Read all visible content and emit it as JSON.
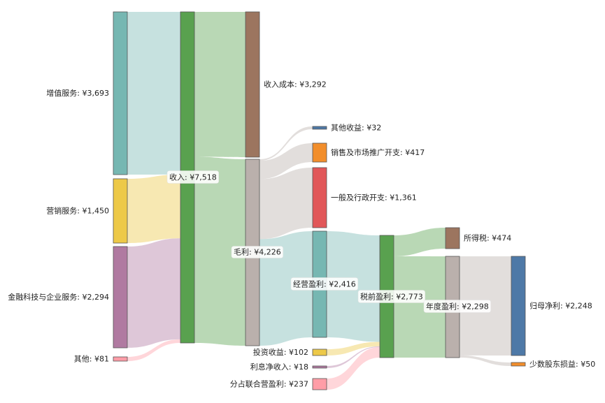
{
  "chart_data": {
    "type": "sankey",
    "currency_prefix": "¥",
    "nodes": [
      {
        "id": "n_vas",
        "label": "增值服务",
        "value": 3693,
        "color": "#76b7b2"
      },
      {
        "id": "n_mkt",
        "label": "营销服务",
        "value": 1450,
        "color": "#edc948"
      },
      {
        "id": "n_fin",
        "label": "金融科技与企业服务",
        "value": 2294,
        "color": "#b07aa1"
      },
      {
        "id": "n_oth",
        "label": "其他",
        "value": 81,
        "color": "#ff9da7"
      },
      {
        "id": "n_rev",
        "label": "收入",
        "value": 7518,
        "color": "#59a14f"
      },
      {
        "id": "n_cost",
        "label": "收入成本",
        "value": 3292,
        "color": "#9c755f"
      },
      {
        "id": "n_gross",
        "label": "毛利",
        "value": 4226,
        "color": "#bab0ac"
      },
      {
        "id": "n_oi",
        "label": "其他收益",
        "value": 32,
        "color": "#4e79a7"
      },
      {
        "id": "n_sm",
        "label": "销售及市场推广开支",
        "value": 417,
        "color": "#f28e2b"
      },
      {
        "id": "n_ga",
        "label": "一般及行政开支",
        "value": 1361,
        "color": "#e15759"
      },
      {
        "id": "n_op",
        "label": "经营盈利",
        "value": 2416,
        "color": "#76b7b2"
      },
      {
        "id": "n_inv",
        "label": "投资收益",
        "value": 102,
        "color": "#edc948"
      },
      {
        "id": "n_int",
        "label": "利息净收入",
        "value": 18,
        "color": "#b07aa1"
      },
      {
        "id": "n_assoc",
        "label": "分占联合营盈利",
        "value": 237,
        "color": "#ff9da7"
      },
      {
        "id": "n_pbt",
        "label": "税前盈利",
        "value": 2773,
        "color": "#59a14f"
      },
      {
        "id": "n_tax",
        "label": "所得税",
        "value": 474,
        "color": "#9c755f"
      },
      {
        "id": "n_np",
        "label": "年度盈利",
        "value": 2298,
        "color": "#bab0ac"
      },
      {
        "id": "n_attr",
        "label": "归母净利",
        "value": 2248,
        "color": "#4e79a7"
      },
      {
        "id": "n_mi",
        "label": "少数股东损益",
        "value": 50,
        "color": "#f28e2b"
      }
    ],
    "links": [
      {
        "source": "n_vas",
        "target": "n_rev",
        "value": 3693
      },
      {
        "source": "n_mkt",
        "target": "n_rev",
        "value": 1450
      },
      {
        "source": "n_fin",
        "target": "n_rev",
        "value": 2294
      },
      {
        "source": "n_oth",
        "target": "n_rev",
        "value": 81
      },
      {
        "source": "n_rev",
        "target": "n_cost",
        "value": 3292
      },
      {
        "source": "n_rev",
        "target": "n_gross",
        "value": 4226
      },
      {
        "source": "n_gross",
        "target": "n_oi",
        "value": 32
      },
      {
        "source": "n_gross",
        "target": "n_sm",
        "value": 417
      },
      {
        "source": "n_gross",
        "target": "n_ga",
        "value": 1361
      },
      {
        "source": "n_gross",
        "target": "n_op",
        "value": 2416
      },
      {
        "source": "n_op",
        "target": "n_pbt",
        "value": 2416
      },
      {
        "source": "n_inv",
        "target": "n_pbt",
        "value": 102
      },
      {
        "source": "n_int",
        "target": "n_pbt",
        "value": 18
      },
      {
        "source": "n_assoc",
        "target": "n_pbt",
        "value": 237
      },
      {
        "source": "n_pbt",
        "target": "n_tax",
        "value": 474
      },
      {
        "source": "n_pbt",
        "target": "n_np",
        "value": 2298
      },
      {
        "source": "n_np",
        "target": "n_attr",
        "value": 2248
      },
      {
        "source": "n_np",
        "target": "n_mi",
        "value": 50
      }
    ]
  }
}
